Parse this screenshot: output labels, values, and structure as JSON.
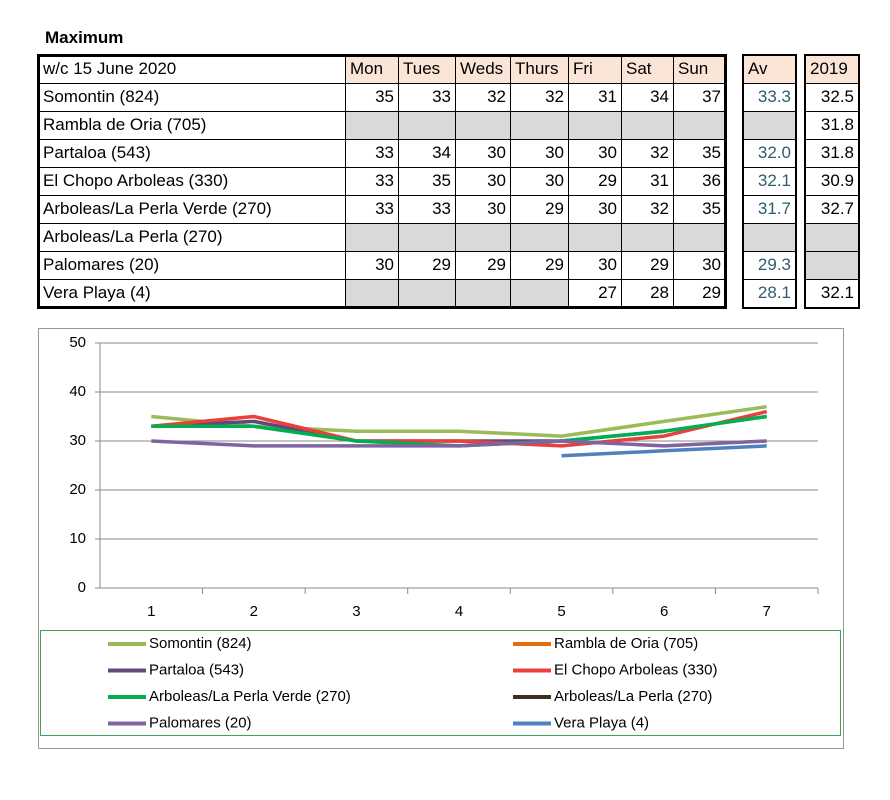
{
  "title": "Maximum",
  "table": {
    "header": [
      "w/c  15 June 2020",
      "Mon",
      "Tues",
      "Weds",
      "Thurs",
      "Fri",
      "Sat",
      "Sun",
      "Av",
      "2019"
    ],
    "rows": [
      [
        "Somontin (824)",
        "35",
        "33",
        "32",
        "32",
        "31",
        "34",
        "37",
        "33.3",
        "32.5"
      ],
      [
        "Rambla de Oria (705)",
        null,
        null,
        null,
        null,
        null,
        null,
        null,
        null,
        "31.8"
      ],
      [
        "Partaloa (543)",
        "33",
        "34",
        "30",
        "30",
        "30",
        "32",
        "35",
        "32.0",
        "31.8"
      ],
      [
        "El Chopo  Arboleas (330)",
        "33",
        "35",
        "30",
        "30",
        "29",
        "31",
        "36",
        "32.1",
        "30.9"
      ],
      [
        "Arboleas/La Perla Verde (270)",
        "33",
        "33",
        "30",
        "29",
        "30",
        "32",
        "35",
        "31.7",
        "32.7"
      ],
      [
        "Arboleas/La Perla (270)",
        null,
        null,
        null,
        null,
        null,
        null,
        null,
        null,
        null
      ],
      [
        "Palomares (20)",
        "30",
        "29",
        "29",
        "29",
        "30",
        "29",
        "30",
        "29.3",
        null
      ],
      [
        "Vera Playa (4)",
        null,
        null,
        null,
        null,
        "27",
        "28",
        "29",
        "28.1",
        "32.1"
      ]
    ]
  },
  "chart_data": {
    "type": "line",
    "categories": [
      1,
      2,
      3,
      4,
      5,
      6,
      7
    ],
    "ylim": [
      0,
      50
    ],
    "yticks": [
      0,
      10,
      20,
      30,
      40,
      50
    ],
    "grid": true,
    "series": [
      {
        "name": "Somontin (824)",
        "color": "#9bbb59",
        "values": [
          35,
          33,
          32,
          32,
          31,
          34,
          37
        ]
      },
      {
        "name": "Rambla de Oria (705)",
        "color": "#e46c0a",
        "values": [
          null,
          null,
          null,
          null,
          null,
          null,
          null
        ]
      },
      {
        "name": "Partaloa (543)",
        "color": "#604a7b",
        "values": [
          33,
          34,
          30,
          30,
          30,
          32,
          35
        ]
      },
      {
        "name": "El Chopo  Arboleas (330)",
        "color": "#e8403a",
        "values": [
          33,
          35,
          30,
          30,
          29,
          31,
          36
        ]
      },
      {
        "name": "Arboleas/La Perla Verde (270)",
        "color": "#00b050",
        "values": [
          33,
          33,
          30,
          29,
          30,
          32,
          35
        ]
      },
      {
        "name": "Arboleas/La Perla (270)",
        "color": "#3f3020",
        "values": [
          null,
          null,
          null,
          null,
          null,
          null,
          null
        ]
      },
      {
        "name": "Palomares (20)",
        "color": "#8064a2",
        "values": [
          30,
          29,
          29,
          29,
          30,
          29,
          30
        ]
      },
      {
        "name": "Vera Playa (4)",
        "color": "#4f81bd",
        "values": [
          null,
          null,
          null,
          null,
          27,
          28,
          29
        ]
      }
    ]
  }
}
